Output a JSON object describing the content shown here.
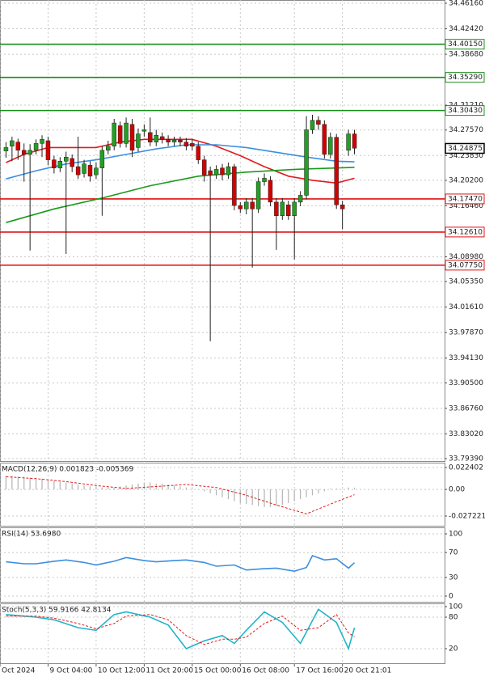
{
  "chart_data": [
    {
      "type": "candlestick",
      "grid": true,
      "up_color": "#22a022",
      "down_color": "#d40000",
      "xlim": [
        -1,
        73
      ],
      "xticks": [
        {
          "value": -1,
          "label": "Oct 2024"
        },
        {
          "value": 7,
          "label": "9 Oct 04:00"
        },
        {
          "value": 15,
          "label": "10 Oct 12:00"
        },
        {
          "value": 23,
          "label": "11 Oct 20:00"
        },
        {
          "value": 31,
          "label": "15 Oct 00:00"
        },
        {
          "value": 39,
          "label": "16 Oct 08:00"
        },
        {
          "value": 48,
          "label": "17 Oct 16:00"
        },
        {
          "value": 56,
          "label": "20 Oct 21:01"
        }
      ],
      "ylim": [
        33.7939,
        34.4616
      ],
      "yticks": [
        {
          "value": 34.4616,
          "label": "34.46160"
        },
        {
          "value": 34.4242,
          "label": "34.42420"
        },
        {
          "value": 34.3868,
          "label": "34.38680"
        },
        {
          "value": 34.3121,
          "label": "34.31210"
        },
        {
          "value": 34.2757,
          "label": "34.27570"
        },
        {
          "value": 34.2383,
          "label": "34.23830"
        },
        {
          "value": 34.202,
          "label": "34.20200"
        },
        {
          "value": 34.1646,
          "label": "34.16460"
        },
        {
          "value": 34.0898,
          "label": "34.08980"
        },
        {
          "value": 34.0535,
          "label": "34.05350"
        },
        {
          "value": 34.0161,
          "label": "34.01610"
        },
        {
          "value": 33.9787,
          "label": "33.97870"
        },
        {
          "value": 33.9413,
          "label": "33.94130"
        },
        {
          "value": 33.905,
          "label": "33.90500"
        },
        {
          "value": 33.8676,
          "label": "33.86760"
        },
        {
          "value": 33.8302,
          "label": "33.83020"
        },
        {
          "value": 33.7939,
          "label": "33.79390"
        }
      ],
      "levels": [
        {
          "value": 34.4015,
          "label": "34.40150",
          "color": "#1a8c1a"
        },
        {
          "value": 34.3529,
          "label": "34.35290",
          "color": "#1a8c1a"
        },
        {
          "value": 34.3043,
          "label": "34.30430",
          "color": "#1a8c1a"
        },
        {
          "value": 34.1747,
          "label": "34.17470",
          "color": "#e01010"
        },
        {
          "value": 34.1261,
          "label": "34.12610",
          "color": "#e01010"
        },
        {
          "value": 34.0775,
          "label": "34.07750",
          "color": "#e01010"
        }
      ],
      "last_price": 34.24875,
      "open": [
        34.245,
        34.252,
        34.258,
        34.246,
        34.24,
        34.246,
        34.256,
        34.26,
        34.232,
        34.22,
        34.23,
        34.234,
        34.222,
        34.212,
        34.224,
        34.21,
        34.22,
        34.246,
        34.252,
        34.282,
        34.256,
        34.284,
        34.25,
        34.274,
        34.272,
        34.258,
        34.266,
        34.262,
        34.258,
        34.261,
        34.258,
        34.256,
        34.252,
        34.232,
        34.216,
        34.21,
        34.22,
        34.21,
        34.222,
        34.165,
        34.16,
        34.17,
        34.16,
        34.2,
        34.202,
        34.17,
        34.15,
        34.166,
        34.15,
        34.17,
        34.18,
        34.276,
        34.29,
        34.284,
        34.24,
        34.265,
        34.166,
        34.246,
        34.27
      ],
      "high": [
        34.258,
        34.266,
        34.263,
        34.256,
        34.255,
        34.262,
        34.268,
        34.266,
        34.238,
        34.236,
        34.244,
        34.24,
        34.266,
        34.232,
        34.23,
        34.228,
        34.252,
        34.26,
        34.292,
        34.288,
        34.294,
        34.292,
        34.278,
        34.284,
        34.294,
        34.276,
        34.272,
        34.268,
        34.266,
        34.266,
        34.264,
        34.262,
        34.258,
        34.238,
        34.222,
        34.224,
        34.226,
        34.228,
        34.226,
        34.17,
        34.176,
        34.176,
        34.206,
        34.212,
        34.208,
        34.176,
        34.176,
        34.172,
        34.176,
        34.186,
        34.296,
        34.298,
        34.296,
        34.29,
        34.272,
        34.27,
        34.172,
        34.276,
        34.276
      ],
      "low": [
        34.235,
        34.23,
        34.232,
        34.2,
        34.099,
        34.24,
        34.236,
        34.224,
        34.212,
        34.214,
        34.094,
        34.214,
        34.204,
        34.206,
        34.2,
        34.204,
        34.15,
        34.24,
        34.246,
        34.25,
        34.25,
        34.236,
        34.244,
        34.266,
        34.252,
        34.252,
        34.256,
        34.252,
        34.252,
        34.252,
        34.246,
        34.246,
        34.226,
        34.2,
        33.966,
        34.204,
        34.202,
        34.204,
        34.158,
        34.154,
        34.152,
        34.074,
        34.154,
        34.194,
        34.164,
        34.1,
        34.144,
        34.144,
        34.086,
        34.164,
        34.174,
        34.27,
        34.276,
        34.234,
        34.234,
        34.16,
        34.13,
        34.238,
        34.24
      ],
      "close": [
        34.25,
        34.26,
        34.246,
        34.24,
        34.246,
        34.256,
        34.262,
        34.232,
        34.22,
        34.23,
        34.236,
        34.222,
        34.21,
        34.226,
        34.208,
        34.22,
        34.246,
        34.252,
        34.286,
        34.256,
        34.286,
        34.246,
        34.27,
        34.276,
        34.258,
        34.268,
        34.262,
        34.258,
        34.261,
        34.258,
        34.252,
        34.252,
        34.232,
        34.21,
        34.21,
        34.218,
        34.21,
        34.222,
        34.165,
        34.16,
        34.17,
        34.16,
        34.2,
        34.205,
        34.17,
        34.15,
        34.17,
        34.15,
        34.17,
        34.18,
        34.276,
        34.29,
        34.284,
        34.24,
        34.265,
        34.166,
        34.16,
        34.27,
        34.249
      ],
      "lines": [
        {
          "color": "#e31a1c",
          "x": [
            0,
            3,
            7,
            11,
            15,
            19,
            23,
            27,
            31,
            35,
            39,
            43,
            47,
            51,
            55,
            58
          ],
          "values": [
            34.228,
            34.24,
            34.25,
            34.25,
            34.25,
            34.258,
            34.262,
            34.262,
            34.262,
            34.252,
            34.238,
            34.222,
            34.208,
            34.202,
            34.198,
            34.205
          ]
        },
        {
          "color": "#3c8fe0",
          "x": [
            0,
            5,
            10,
            15,
            20,
            25,
            30,
            35,
            40,
            45,
            50,
            55,
            58
          ],
          "values": [
            34.204,
            34.216,
            34.226,
            34.232,
            34.24,
            34.248,
            34.254,
            34.254,
            34.25,
            34.243,
            34.236,
            34.23,
            34.229
          ]
        },
        {
          "color": "#1a9a1a",
          "x": [
            0,
            8,
            16,
            24,
            32,
            40,
            48,
            58
          ],
          "values": [
            34.14,
            34.16,
            34.176,
            34.194,
            34.208,
            34.214,
            34.218,
            34.221
          ]
        }
      ]
    },
    {
      "type": "macd",
      "title": "MACD(12,26,9) 0.001823 -0.005369",
      "grid": true,
      "ylim": [
        -0.027221,
        0.022402
      ],
      "yticks": [
        0.022402,
        {
          "value": 0,
          "label": "0.00"
        },
        -0.027221
      ],
      "histogram": {
        "color": "#b4b4b4",
        "values": [
          0.014,
          0.014,
          0.013,
          0.013,
          0.012,
          0.012,
          0.011,
          0.01,
          0.009,
          0.008,
          0.007,
          0.006,
          0.005,
          0.004,
          0.003,
          0.003,
          0.002,
          0.002,
          0.002,
          0.003,
          0.004,
          0.005,
          0.006,
          0.007,
          0.007,
          0.006,
          0.006,
          0.005,
          0.004,
          0.003,
          0.002,
          0.001,
          0.0,
          -0.002,
          -0.004,
          -0.006,
          -0.008,
          -0.01,
          -0.012,
          -0.014,
          -0.015,
          -0.016,
          -0.017,
          -0.018,
          -0.018,
          -0.017,
          -0.016,
          -0.014,
          -0.012,
          -0.01,
          -0.008,
          -0.006,
          -0.004,
          -0.002,
          0.001,
          0.001,
          0.0,
          0.002,
          0.001823
        ]
      },
      "series": [
        {
          "color": "#e31a1c",
          "dashed": true,
          "x": [
            0,
            5,
            10,
            15,
            20,
            25,
            30,
            35,
            40,
            45,
            50,
            55,
            58
          ],
          "values": [
            0.013,
            0.011,
            0.008,
            0.004,
            0.001,
            0.003,
            0.005,
            0.002,
            -0.006,
            -0.016,
            -0.025,
            -0.0125,
            -0.005369
          ]
        }
      ]
    },
    {
      "type": "line",
      "title": "RSI(14) 53.6980",
      "grid": true,
      "ylim": [
        0,
        100
      ],
      "yticks": [
        100,
        70,
        30,
        0
      ],
      "series": [
        {
          "color": "#3c8fe0",
          "x": [
            0,
            3,
            5,
            8,
            10,
            13,
            15,
            18,
            20,
            23,
            25,
            28,
            30,
            33,
            35,
            38,
            40,
            43,
            45,
            48,
            50,
            51,
            53,
            55,
            57,
            58
          ],
          "values": [
            55,
            52,
            52,
            56,
            58,
            54,
            50,
            56,
            62,
            57,
            55,
            57,
            58,
            54,
            48,
            50,
            42,
            44,
            45,
            40,
            46,
            65,
            58,
            60,
            45,
            53.698
          ]
        }
      ]
    },
    {
      "type": "line",
      "title": "Stoch(5,3,3) 59.9166 42.8134",
      "grid": true,
      "ylim": [
        0,
        100
      ],
      "yticks": [
        100,
        80,
        20
      ],
      "series": [
        {
          "color": "#22b5c8",
          "x": [
            0,
            5,
            8,
            12,
            15,
            18,
            20,
            24,
            27,
            30,
            33,
            36,
            38,
            40,
            43,
            46,
            49,
            52,
            55,
            57,
            58
          ],
          "values": [
            85,
            80,
            75,
            60,
            55,
            85,
            90,
            80,
            65,
            20,
            35,
            45,
            30,
            55,
            90,
            70,
            30,
            95,
            70,
            20,
            59.9166
          ]
        },
        {
          "color": "#e31a1c",
          "dashed": true,
          "x": [
            0,
            5,
            8,
            12,
            15,
            18,
            20,
            24,
            27,
            30,
            33,
            36,
            38,
            40,
            43,
            46,
            49,
            52,
            55,
            57,
            58
          ],
          "values": [
            82,
            82,
            78,
            68,
            58,
            68,
            82,
            85,
            75,
            45,
            28,
            38,
            38,
            42,
            68,
            82,
            55,
            60,
            85,
            50,
            42.8134
          ]
        }
      ]
    }
  ]
}
